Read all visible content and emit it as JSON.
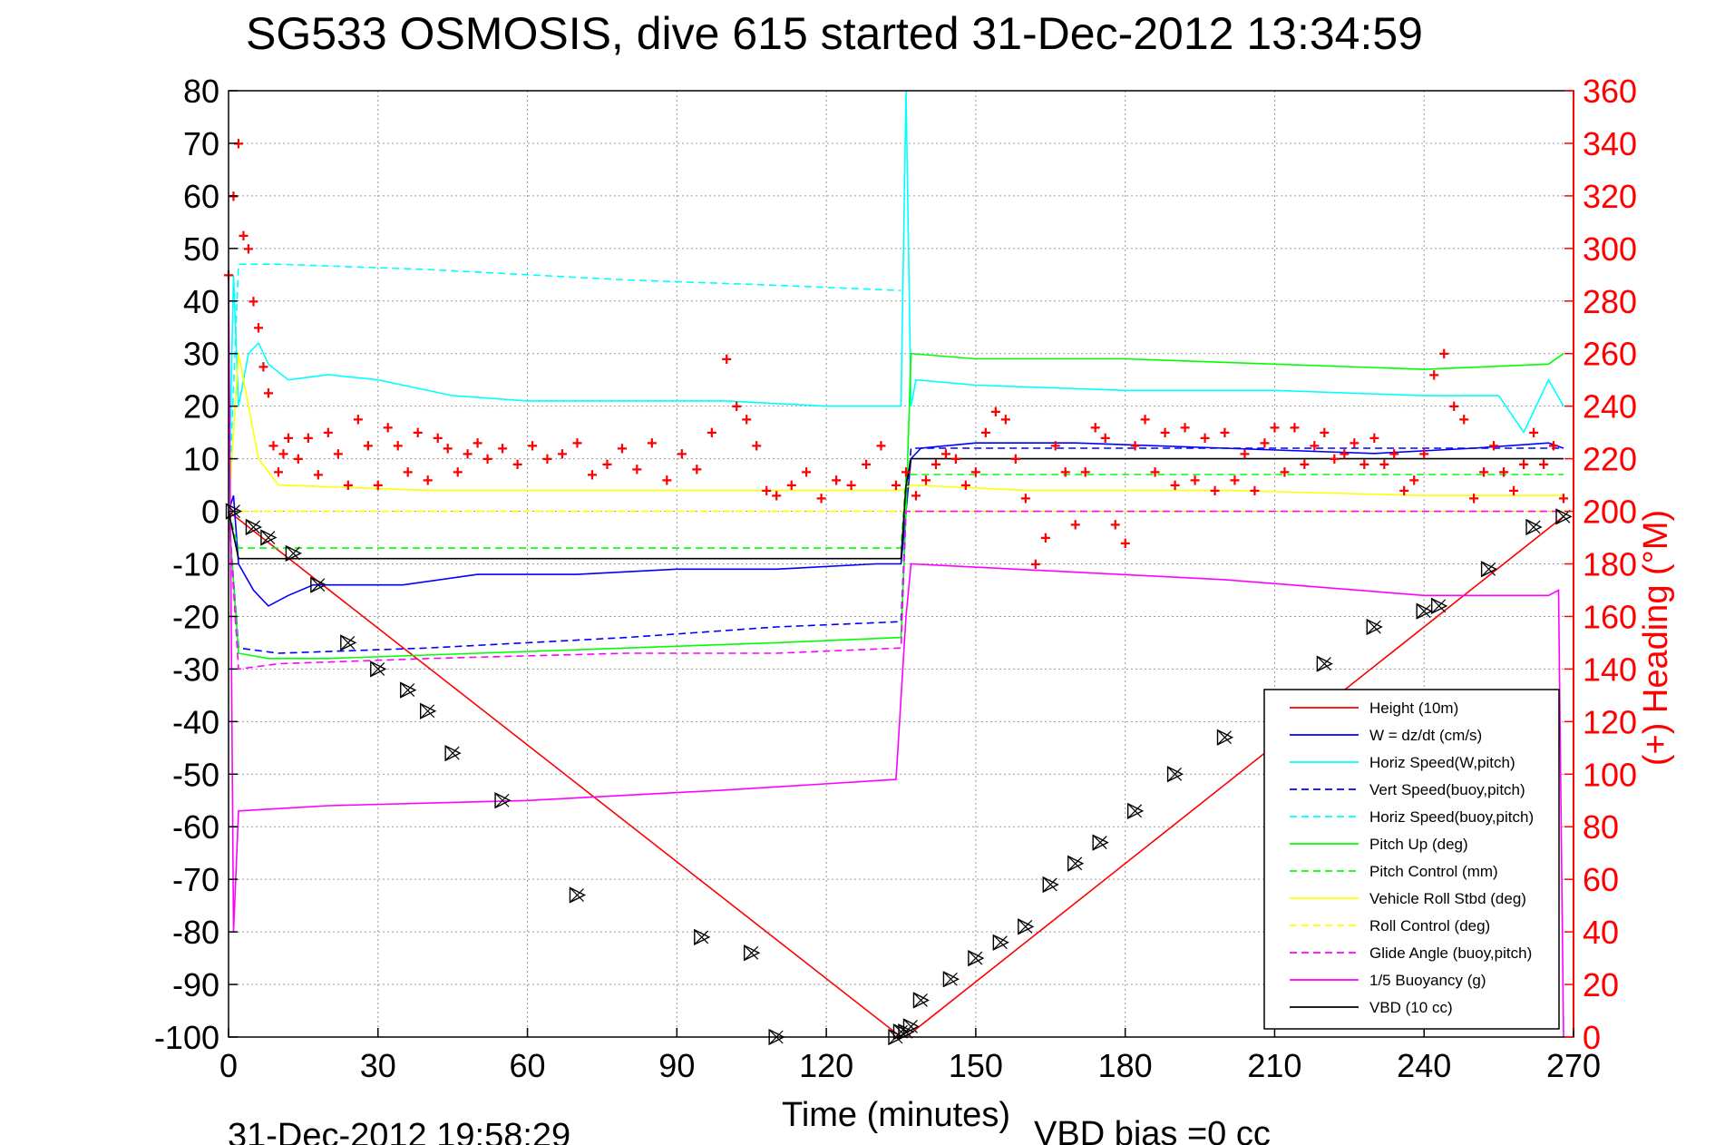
{
  "chart_data": {
    "type": "line",
    "title": "SG533 OSMOSIS, dive 615 started 31-Dec-2012 13:34:59",
    "xlabel": "Time (minutes)",
    "ylabel": "",
    "y2label": "(+) Heading (°M)",
    "xlim": [
      0,
      270
    ],
    "ylim": [
      -100,
      80
    ],
    "y2lim": [
      0,
      360
    ],
    "xticks": [
      0,
      30,
      60,
      90,
      120,
      150,
      180,
      210,
      240,
      270
    ],
    "yticks": [
      80,
      70,
      60,
      50,
      40,
      30,
      20,
      10,
      0,
      -10,
      -20,
      -30,
      -40,
      -50,
      -60,
      -70,
      -80,
      -90,
      -100
    ],
    "y2ticks": [
      360,
      340,
      320,
      300,
      280,
      260,
      240,
      220,
      200,
      180,
      160,
      140,
      120,
      100,
      80,
      60,
      40,
      20,
      0
    ],
    "grid": true,
    "legend_position": "lower-right",
    "footer_left": "31-Dec-2012 19:58:29",
    "footer_right": "VBD bias =0 cc",
    "colors": {
      "red": "#ff0000",
      "blue": "#0000ff",
      "cyan": "#00ffff",
      "green": "#00ff00",
      "yellow": "#ffff00",
      "magenta": "#ff00ff",
      "black": "#000000"
    },
    "series": [
      {
        "name": "Height (10m)",
        "color": "red",
        "dash": false,
        "x": [
          0,
          135,
          136,
          268
        ],
        "y": [
          0,
          -100,
          -100,
          -1
        ]
      },
      {
        "name": "W = dz/dt (cm/s)",
        "color": "blue",
        "dash": false,
        "x": [
          0,
          1,
          2,
          5,
          8,
          12,
          17,
          25,
          35,
          50,
          70,
          90,
          110,
          130,
          135,
          136,
          137,
          139,
          150,
          170,
          200,
          230,
          250,
          265,
          268
        ],
        "y": [
          0,
          3,
          -10,
          -15,
          -18,
          -16,
          -14,
          -14,
          -14,
          -12,
          -12,
          -11,
          -11,
          -10,
          -10,
          0,
          10,
          12,
          13,
          13,
          12,
          11,
          12,
          13,
          12
        ]
      },
      {
        "name": "Horiz Speed(W,pitch)",
        "color": "cyan",
        "dash": false,
        "x": [
          0,
          1,
          2,
          4,
          6,
          8,
          12,
          20,
          30,
          45,
          60,
          80,
          100,
          120,
          135,
          136,
          137,
          138,
          150,
          180,
          210,
          240,
          255,
          260,
          265,
          268
        ],
        "y": [
          0,
          45,
          20,
          30,
          32,
          28,
          25,
          26,
          25,
          22,
          21,
          21,
          21,
          20,
          20,
          80,
          20,
          25,
          24,
          23,
          23,
          22,
          22,
          15,
          25,
          20
        ]
      },
      {
        "name": "Vert Speed(buoy,pitch)",
        "color": "blue",
        "dash": true,
        "x": [
          0,
          2,
          10,
          40,
          80,
          110,
          135,
          136,
          137,
          268
        ],
        "y": [
          0,
          -26,
          -27,
          -26,
          -24,
          -22,
          -21,
          0,
          12,
          12
        ]
      },
      {
        "name": "Horiz Speed(buoy,pitch)",
        "color": "cyan",
        "dash": true,
        "x": [
          0,
          2,
          10,
          40,
          80,
          110,
          135
        ],
        "y": [
          0,
          47,
          47,
          46,
          44,
          43,
          42
        ]
      },
      {
        "name": "Pitch Up (deg)",
        "color": "green",
        "dash": false,
        "x": [
          0,
          2,
          8,
          20,
          50,
          80,
          110,
          135,
          136,
          137,
          150,
          180,
          210,
          240,
          265,
          268
        ],
        "y": [
          0,
          -27,
          -28,
          -28,
          -27,
          -26,
          -25,
          -24,
          0,
          30,
          29,
          29,
          28,
          27,
          28,
          30
        ]
      },
      {
        "name": "Pitch Control (mm)",
        "color": "green",
        "dash": true,
        "x": [
          0,
          2,
          135,
          136,
          268
        ],
        "y": [
          0,
          -7,
          -7,
          7,
          7
        ]
      },
      {
        "name": "Vehicle Roll Stbd (deg)",
        "color": "yellow",
        "dash": false,
        "x": [
          0,
          2,
          6,
          10,
          40,
          80,
          120,
          135,
          137,
          160,
          200,
          240,
          268
        ],
        "y": [
          0,
          30,
          10,
          5,
          4,
          4,
          4,
          4,
          5,
          4,
          4,
          3,
          3
        ]
      },
      {
        "name": "Roll Control (deg)",
        "color": "yellow",
        "dash": true,
        "x": [
          0,
          268
        ],
        "y": [
          0,
          0
        ]
      },
      {
        "name": "Glide Angle (buoy,pitch)",
        "color": "magenta",
        "dash": true,
        "x": [
          0,
          2,
          10,
          40,
          80,
          110,
          135,
          136,
          137,
          268
        ],
        "y": [
          0,
          -30,
          -29,
          -28,
          -27,
          -27,
          -26,
          0,
          0,
          0
        ]
      },
      {
        "name": "1/5 Buoyancy (g)",
        "color": "magenta",
        "dash": false,
        "x": [
          0,
          1,
          2,
          20,
          60,
          100,
          134,
          136,
          137,
          200,
          240,
          265,
          267,
          268
        ],
        "y": [
          45,
          -80,
          -57,
          -56,
          -55,
          -53,
          -51,
          -20,
          -10,
          -13,
          -16,
          -16,
          -15,
          -100
        ]
      },
      {
        "name": "VBD (10 cc)",
        "color": "black",
        "dash": false,
        "x": [
          0,
          2,
          135,
          136,
          137,
          268
        ],
        "y": [
          0,
          -9,
          -9,
          5,
          10,
          10
        ]
      }
    ],
    "heading_marker": "+",
    "heading": {
      "x": [
        0,
        1,
        2,
        3,
        4,
        5,
        6,
        7,
        8,
        9,
        10,
        11,
        12,
        14,
        16,
        18,
        20,
        22,
        24,
        26,
        28,
        30,
        32,
        34,
        36,
        38,
        40,
        42,
        44,
        46,
        48,
        50,
        52,
        55,
        58,
        61,
        64,
        67,
        70,
        73,
        76,
        79,
        82,
        85,
        88,
        91,
        94,
        97,
        100,
        102,
        104,
        106,
        108,
        110,
        113,
        116,
        119,
        122,
        125,
        128,
        131,
        134,
        136,
        138,
        140,
        142,
        144,
        146,
        148,
        150,
        152,
        154,
        156,
        158,
        160,
        162,
        164,
        166,
        168,
        170,
        172,
        174,
        176,
        178,
        180,
        182,
        184,
        186,
        188,
        190,
        192,
        194,
        196,
        198,
        200,
        202,
        204,
        206,
        208,
        210,
        212,
        214,
        216,
        218,
        220,
        222,
        224,
        226,
        228,
        230,
        232,
        234,
        236,
        238,
        240,
        242,
        244,
        246,
        248,
        250,
        252,
        254,
        256,
        258,
        260,
        262,
        264,
        266,
        268
      ],
      "y": [
        290,
        320,
        340,
        305,
        300,
        280,
        270,
        255,
        245,
        225,
        215,
        222,
        228,
        220,
        228,
        214,
        230,
        222,
        210,
        235,
        225,
        210,
        232,
        225,
        215,
        230,
        212,
        228,
        224,
        215,
        222,
        226,
        220,
        224,
        218,
        225,
        220,
        222,
        226,
        214,
        218,
        224,
        216,
        226,
        212,
        222,
        216,
        230,
        258,
        240,
        235,
        225,
        208,
        206,
        210,
        215,
        205,
        212,
        210,
        218,
        225,
        210,
        215,
        206,
        212,
        218,
        222,
        220,
        210,
        215,
        230,
        238,
        235,
        220,
        205,
        180,
        190,
        225,
        215,
        195,
        215,
        232,
        228,
        195,
        188,
        225,
        235,
        215,
        230,
        210,
        232,
        212,
        228,
        208,
        230,
        212,
        222,
        208,
        226,
        232,
        215,
        232,
        218,
        225,
        230,
        220,
        222,
        226,
        218,
        228,
        218,
        222,
        208,
        212,
        222,
        252,
        260,
        240,
        235,
        205,
        215,
        225,
        215,
        208,
        218,
        230,
        218,
        225,
        205
      ]
    },
    "dive_markers": {
      "x": [
        1,
        5,
        8,
        13,
        18,
        24,
        30,
        36,
        40,
        45,
        55,
        70,
        95,
        105,
        110,
        134,
        135,
        136,
        137,
        139,
        145,
        150,
        155,
        160,
        165,
        170,
        175,
        182,
        190,
        200,
        210,
        220,
        230,
        240,
        243,
        253,
        262,
        268
      ],
      "y": [
        0,
        -3,
        -5,
        -8,
        -14,
        -25,
        -30,
        -34,
        -38,
        -46,
        -55,
        -73,
        -81,
        -84,
        -100,
        -100,
        -99,
        -99,
        -98,
        -93,
        -89,
        -85,
        -82,
        -79,
        -71,
        -67,
        -63,
        -57,
        -50,
        -43,
        -36,
        -29,
        -22,
        -19,
        -18,
        -11,
        -3,
        -1
      ]
    }
  }
}
